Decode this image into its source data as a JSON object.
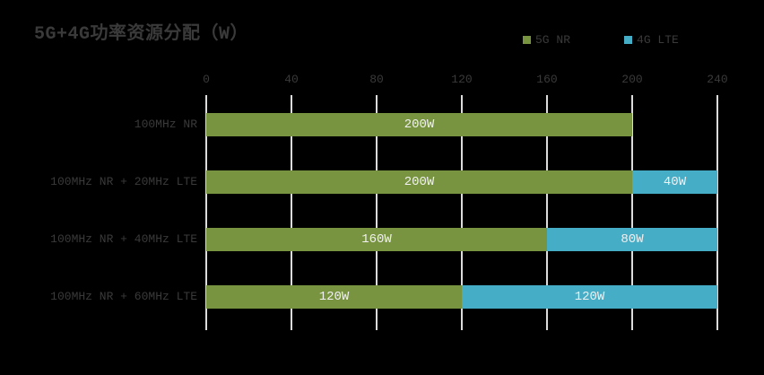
{
  "title": "5G+4G功率资源分配（W）",
  "colors": {
    "background": "#000000",
    "text": "#3a3a3a",
    "bar_label_text": "#f0f0f0",
    "gridline": "#dcdcdc",
    "series_5g_nr": "#789440",
    "series_4g_lte": "#46ADC7"
  },
  "chart_data": {
    "type": "bar",
    "orientation": "horizontal",
    "stacked": true,
    "title": "5G+4G功率资源分配（W）",
    "categories": [
      "100MHz NR",
      "100MHz NR + 20MHz LTE",
      "100MHz NR + 40MHz LTE",
      "100MHz NR + 60MHz LTE"
    ],
    "series": [
      {
        "name": "5G NR",
        "color": "#789440",
        "values": [
          200,
          200,
          160,
          120
        ],
        "data_labels": [
          "200W",
          "200W",
          "160W",
          "120W"
        ]
      },
      {
        "name": "4G LTE",
        "color": "#46ADC7",
        "values": [
          0,
          40,
          80,
          120
        ],
        "data_labels": [
          "",
          "40W",
          "80W",
          "120W"
        ]
      }
    ],
    "xlabel": "",
    "ylabel": "",
    "xlim": [
      0,
      240
    ],
    "x_ticks": [
      "0",
      "40",
      "80",
      "120",
      "160",
      "200",
      "240"
    ],
    "grid": "vertical-major",
    "legend_position": "top-right",
    "axis_labels_position": "top"
  }
}
